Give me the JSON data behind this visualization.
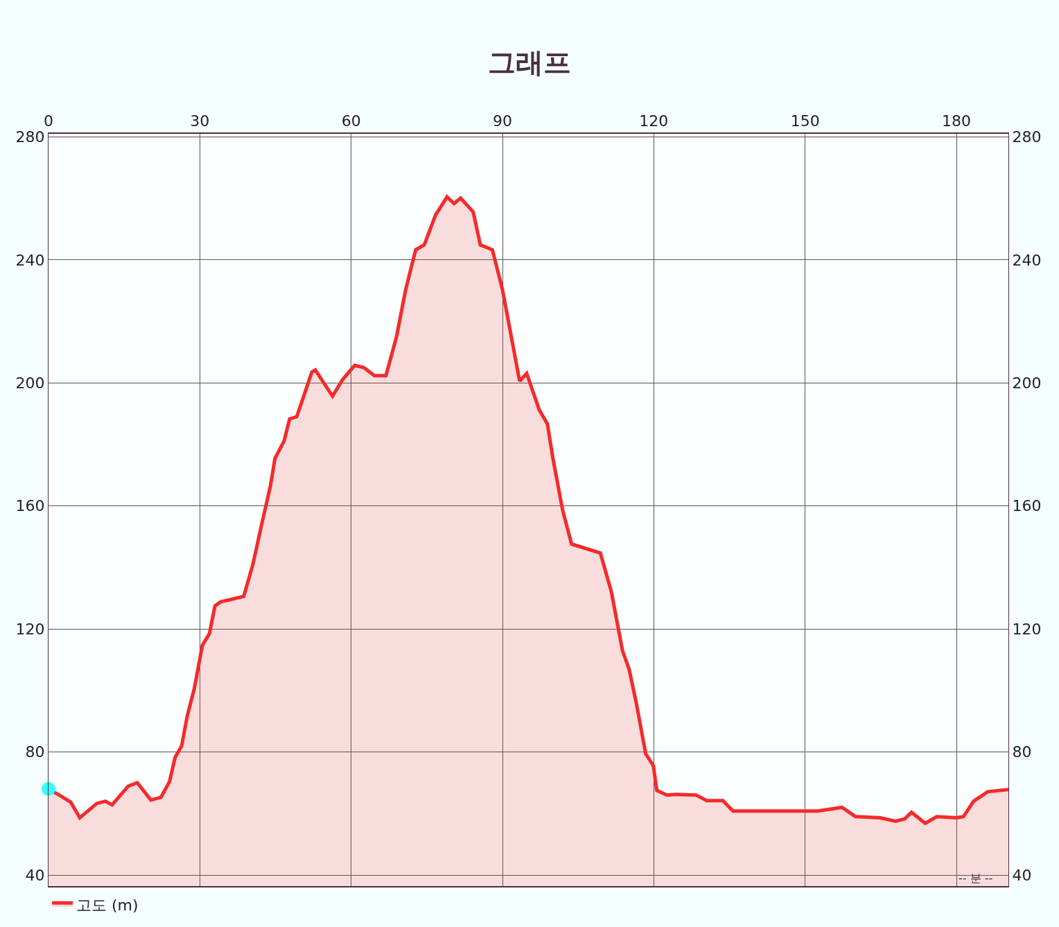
{
  "chart_data": {
    "type": "area",
    "title": "그래프",
    "xlabel": "-- 분 --",
    "x": [
      0,
      2.1,
      4.4,
      6.2,
      9.6,
      11.3,
      12.6,
      15.8,
      17.6,
      20.3,
      22.3,
      24,
      25.1,
      26.4,
      27.5,
      28.9,
      30.5,
      31.9,
      33,
      34.1,
      38.7,
      40.5,
      42.3,
      44,
      44.9,
      46.7,
      47.8,
      49.2,
      50.6,
      52.2,
      52.9,
      56.3,
      58.4,
      60.7,
      62.5,
      64.6,
      66.9,
      69,
      70.8,
      72.8,
      74.5,
      76.7,
      79,
      80.4,
      81.7,
      84.2,
      85.6,
      88,
      90,
      92.3,
      93.4,
      94.8,
      97.3,
      98.9,
      100,
      101.9,
      103.7,
      109.4,
      111.6,
      113.8,
      115.1,
      116.5,
      118.4,
      119.9,
      120.6,
      122.6,
      124.3,
      128.4,
      130.5,
      133.7,
      135.7,
      152.5,
      157.3,
      160,
      164.9,
      167.9,
      169.7,
      171.1,
      173.8,
      176.1,
      180,
      181.4,
      183.4,
      186.2,
      190.3
    ],
    "series": [
      {
        "name": "고도 (m)",
        "color": "#f52a2a",
        "values": [
          68,
          66,
          63.7,
          58.6,
          63.3,
          64,
          62.8,
          68.9,
          70,
          64.4,
          65.3,
          70.4,
          78.3,
          82,
          91.7,
          100.6,
          114.7,
          118.5,
          127.5,
          128.8,
          130.6,
          140.9,
          154.3,
          166.6,
          175.5,
          181.1,
          188.3,
          189,
          195.7,
          203.5,
          204.2,
          195.7,
          201.3,
          205.7,
          205,
          202.4,
          202.4,
          215.1,
          230.3,
          243.3,
          244.9,
          254.5,
          260.5,
          258.3,
          260.1,
          255.6,
          244.9,
          243.3,
          230.3,
          210.2,
          200.6,
          203.1,
          191.2,
          186.7,
          175.5,
          158.8,
          147.6,
          144.7,
          132,
          112.9,
          106.9,
          96.2,
          79.4,
          75.6,
          67.5,
          66,
          66.2,
          66,
          64.2,
          64.2,
          60.8,
          60.8,
          62,
          59,
          58.6,
          57.5,
          58.2,
          60.4,
          56.8,
          59,
          58.6,
          59,
          64,
          67.1,
          67.8
        ]
      },
      {
        "type": "scatter",
        "marker": "circle",
        "color": "#33ffff",
        "x": [
          0
        ],
        "values": [
          68
        ]
      }
    ],
    "xlim": [
      0,
      190.3
    ],
    "xticks": [
      0,
      30,
      60,
      90,
      120,
      150,
      180
    ],
    "ylim": [
      36.4,
      281
    ],
    "yticks": [
      40,
      80,
      120,
      160,
      200,
      240,
      280
    ],
    "y2lim": [
      36.4,
      281
    ],
    "y2ticks": [
      40,
      80,
      120,
      160,
      200,
      240,
      280
    ],
    "grid": true,
    "legend": "bottom left",
    "marker": "none",
    "line_style": "solid"
  }
}
